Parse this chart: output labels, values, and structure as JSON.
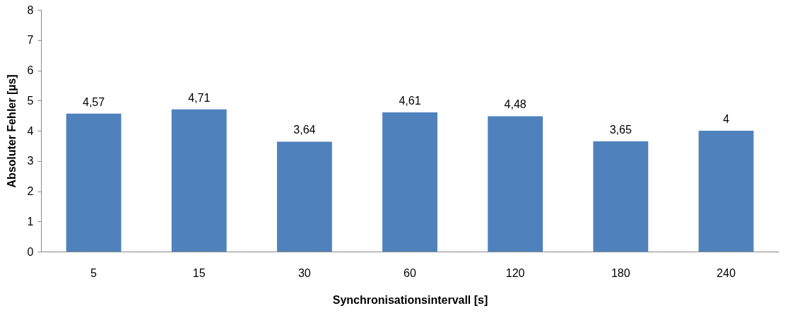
{
  "chart_data": {
    "type": "bar",
    "xlabel": "Synchronisationsintervall [s]",
    "ylabel": "Absoluter Fehler [µs]",
    "categories": [
      "5",
      "15",
      "30",
      "60",
      "120",
      "180",
      "240"
    ],
    "values": [
      4.57,
      4.71,
      3.64,
      4.61,
      4.48,
      3.65,
      4
    ],
    "value_labels": [
      "4,57",
      "4,71",
      "3,64",
      "4,61",
      "4,48",
      "3,65",
      "4"
    ],
    "color": "#4f81bd",
    "ylim": [
      0,
      8
    ],
    "yticks": [
      0,
      1,
      2,
      3,
      4,
      5,
      6,
      7,
      8
    ],
    "grid": false
  }
}
